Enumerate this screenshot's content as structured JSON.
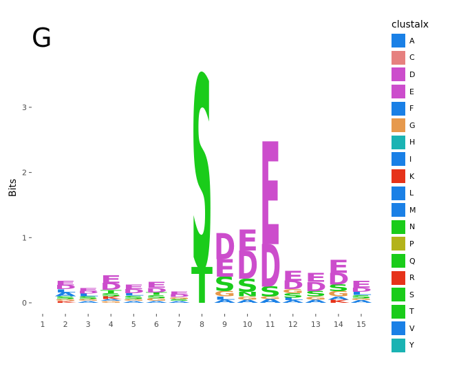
{
  "panel_label": "G",
  "chart_data": {
    "type": "sequence-logo",
    "title": "G",
    "ylabel": "Bits",
    "xlabel": "",
    "ylim": [
      0,
      3.6
    ],
    "yticks": [
      0,
      1,
      2,
      3
    ],
    "positions": [
      1,
      2,
      3,
      4,
      5,
      6,
      7,
      8,
      9,
      10,
      11,
      12,
      13,
      14,
      15
    ],
    "legend_title": "clustalx",
    "color_scheme": [
      {
        "letter": "A",
        "color": "#1a80e6"
      },
      {
        "letter": "C",
        "color": "#e6807f"
      },
      {
        "letter": "D",
        "color": "#cc4dcc"
      },
      {
        "letter": "E",
        "color": "#cc4dcc"
      },
      {
        "letter": "F",
        "color": "#1a80e6"
      },
      {
        "letter": "G",
        "color": "#e6994d"
      },
      {
        "letter": "H",
        "color": "#1ab3b3"
      },
      {
        "letter": "I",
        "color": "#1a80e6"
      },
      {
        "letter": "K",
        "color": "#e6331a"
      },
      {
        "letter": "L",
        "color": "#1a80e6"
      },
      {
        "letter": "M",
        "color": "#1a80e6"
      },
      {
        "letter": "N",
        "color": "#1acc1a"
      },
      {
        "letter": "P",
        "color": "#b3b31a"
      },
      {
        "letter": "Q",
        "color": "#1acc1a"
      },
      {
        "letter": "R",
        "color": "#e6331a"
      },
      {
        "letter": "S",
        "color": "#1acc1a"
      },
      {
        "letter": "T",
        "color": "#1acc1a"
      },
      {
        "letter": "V",
        "color": "#1a80e6"
      },
      {
        "letter": "Y",
        "color": "#1ab3b3"
      }
    ],
    "stacks": [
      {
        "position": 1,
        "letters": []
      },
      {
        "position": 2,
        "letters": [
          {
            "letter": "K",
            "bits": 0.03
          },
          {
            "letter": "G",
            "bits": 0.03
          },
          {
            "letter": "S",
            "bits": 0.04
          },
          {
            "letter": "A",
            "bits": 0.06
          },
          {
            "letter": "L",
            "bits": 0.05
          },
          {
            "letter": "D",
            "bits": 0.06
          },
          {
            "letter": "E",
            "bits": 0.07
          }
        ]
      },
      {
        "position": 3,
        "letters": [
          {
            "letter": "A",
            "bits": 0.03
          },
          {
            "letter": "G",
            "bits": 0.03
          },
          {
            "letter": "S",
            "bits": 0.04
          },
          {
            "letter": "L",
            "bits": 0.04
          },
          {
            "letter": "D",
            "bits": 0.04
          },
          {
            "letter": "E",
            "bits": 0.05
          }
        ]
      },
      {
        "position": 4,
        "letters": [
          {
            "letter": "G",
            "bits": 0.03
          },
          {
            "letter": "A",
            "bits": 0.03
          },
          {
            "letter": "K",
            "bits": 0.04
          },
          {
            "letter": "S",
            "bits": 0.05
          },
          {
            "letter": "T",
            "bits": 0.05
          },
          {
            "letter": "D",
            "bits": 0.1
          },
          {
            "letter": "E",
            "bits": 0.12
          }
        ]
      },
      {
        "position": 5,
        "letters": [
          {
            "letter": "A",
            "bits": 0.03
          },
          {
            "letter": "G",
            "bits": 0.03
          },
          {
            "letter": "S",
            "bits": 0.05
          },
          {
            "letter": "L",
            "bits": 0.04
          },
          {
            "letter": "D",
            "bits": 0.06
          },
          {
            "letter": "E",
            "bits": 0.07
          }
        ]
      },
      {
        "position": 6,
        "letters": [
          {
            "letter": "A",
            "bits": 0.03
          },
          {
            "letter": "G",
            "bits": 0.04
          },
          {
            "letter": "S",
            "bits": 0.05
          },
          {
            "letter": "T",
            "bits": 0.04
          },
          {
            "letter": "D",
            "bits": 0.07
          },
          {
            "letter": "E",
            "bits": 0.09
          }
        ]
      },
      {
        "position": 7,
        "letters": [
          {
            "letter": "A",
            "bits": 0.03
          },
          {
            "letter": "S",
            "bits": 0.03
          },
          {
            "letter": "G",
            "bits": 0.03
          },
          {
            "letter": "D",
            "bits": 0.04
          },
          {
            "letter": "E",
            "bits": 0.04
          }
        ]
      },
      {
        "position": 8,
        "letters": [
          {
            "letter": "T",
            "bits": 0.55
          },
          {
            "letter": "S",
            "bits": 2.95
          }
        ]
      },
      {
        "position": 9,
        "letters": [
          {
            "letter": "A",
            "bits": 0.05
          },
          {
            "letter": "L",
            "bits": 0.05
          },
          {
            "letter": "G",
            "bits": 0.08
          },
          {
            "letter": "S",
            "bits": 0.22
          },
          {
            "letter": "E",
            "bits": 0.27
          },
          {
            "letter": "D",
            "bits": 0.4
          }
        ]
      },
      {
        "position": 10,
        "letters": [
          {
            "letter": "A",
            "bits": 0.05
          },
          {
            "letter": "G",
            "bits": 0.05
          },
          {
            "letter": "N",
            "bits": 0.07
          },
          {
            "letter": "S",
            "bits": 0.2
          },
          {
            "letter": "D",
            "bits": 0.43
          },
          {
            "letter": "E",
            "bits": 0.32
          }
        ]
      },
      {
        "position": 11,
        "letters": [
          {
            "letter": "A",
            "bits": 0.06
          },
          {
            "letter": "G",
            "bits": 0.04
          },
          {
            "letter": "S",
            "bits": 0.15
          },
          {
            "letter": "D",
            "bits": 0.65
          },
          {
            "letter": "E",
            "bits": 1.58
          }
        ]
      },
      {
        "position": 12,
        "letters": [
          {
            "letter": "A",
            "bits": 0.04
          },
          {
            "letter": "L",
            "bits": 0.04
          },
          {
            "letter": "S",
            "bits": 0.07
          },
          {
            "letter": "G",
            "bits": 0.06
          },
          {
            "letter": "D",
            "bits": 0.13
          },
          {
            "letter": "E",
            "bits": 0.15
          }
        ]
      },
      {
        "position": 13,
        "letters": [
          {
            "letter": "A",
            "bits": 0.05
          },
          {
            "letter": "G",
            "bits": 0.05
          },
          {
            "letter": "S",
            "bits": 0.08
          },
          {
            "letter": "D",
            "bits": 0.14
          },
          {
            "letter": "E",
            "bits": 0.14
          }
        ]
      },
      {
        "position": 14,
        "letters": [
          {
            "letter": "K",
            "bits": 0.05
          },
          {
            "letter": "A",
            "bits": 0.05
          },
          {
            "letter": "G",
            "bits": 0.08
          },
          {
            "letter": "S",
            "bits": 0.1
          },
          {
            "letter": "D",
            "bits": 0.18
          },
          {
            "letter": "E",
            "bits": 0.2
          }
        ]
      },
      {
        "position": 15,
        "letters": [
          {
            "letter": "A",
            "bits": 0.04
          },
          {
            "letter": "G",
            "bits": 0.03
          },
          {
            "letter": "S",
            "bits": 0.05
          },
          {
            "letter": "L",
            "bits": 0.05
          },
          {
            "letter": "D",
            "bits": 0.06
          },
          {
            "letter": "E",
            "bits": 0.1
          }
        ]
      }
    ]
  }
}
